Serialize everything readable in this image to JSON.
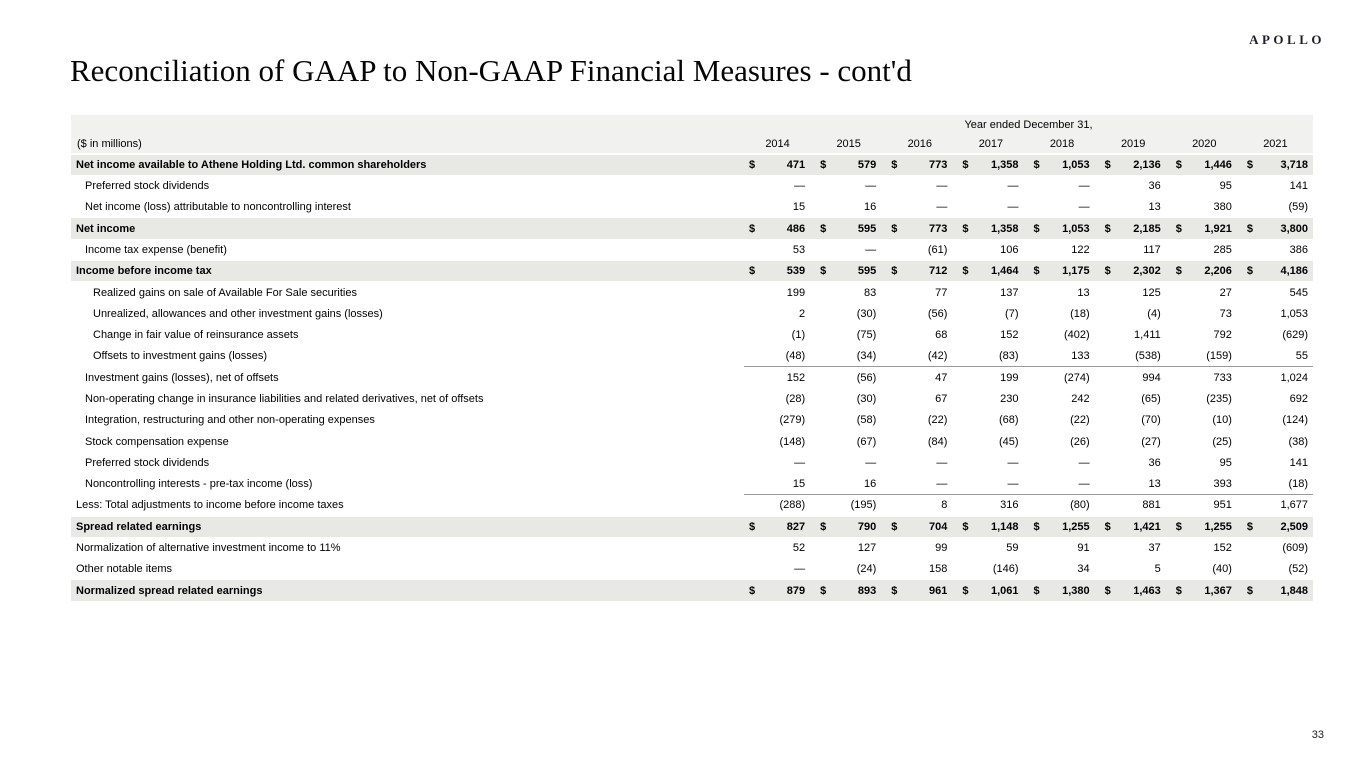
{
  "logo": "APOLLO",
  "page_title": "Reconciliation of GAAP to Non-GAAP Financial Measures - cont'd",
  "page_number": "33",
  "colors": {
    "header_band": "#f1f1ef",
    "total_row_shading": "#e8e8e4",
    "rule_line": "#9a9a9a"
  },
  "table": {
    "period_header": "Year ended December 31,",
    "units_label": "($ in millions)",
    "currency_symbol": "$",
    "years": [
      "2014",
      "2015",
      "2016",
      "2017",
      "2018",
      "2019",
      "2020",
      "2021"
    ],
    "rows": [
      {
        "label": "Net income available to Athene Holding Ltd. common shareholders",
        "style": "total",
        "indent": 0,
        "dollar": true,
        "rule_below": false,
        "values": [
          "471",
          "579",
          "773",
          "1,358",
          "1,053",
          "2,136",
          "1,446",
          "3,718"
        ]
      },
      {
        "label": "Preferred stock dividends",
        "style": "normal",
        "indent": 1,
        "dollar": false,
        "rule_below": false,
        "values": [
          "—",
          "—",
          "—",
          "—",
          "—",
          "36",
          "95",
          "141"
        ]
      },
      {
        "label": "Net income (loss) attributable to noncontrolling interest",
        "style": "normal",
        "indent": 1,
        "dollar": false,
        "rule_below": false,
        "values": [
          "15",
          "16",
          "—",
          "—",
          "—",
          "13",
          "380",
          "(59)"
        ]
      },
      {
        "label": "Net income",
        "style": "total",
        "indent": 0,
        "dollar": true,
        "rule_below": false,
        "values": [
          "486",
          "595",
          "773",
          "1,358",
          "1,053",
          "2,185",
          "1,921",
          "3,800"
        ]
      },
      {
        "label": "Income tax expense (benefit)",
        "style": "normal",
        "indent": 1,
        "dollar": false,
        "rule_below": false,
        "values": [
          "53",
          "—",
          "(61)",
          "106",
          "122",
          "117",
          "285",
          "386"
        ]
      },
      {
        "label": "Income before income tax",
        "style": "total",
        "indent": 0,
        "dollar": true,
        "rule_below": false,
        "values": [
          "539",
          "595",
          "712",
          "1,464",
          "1,175",
          "2,302",
          "2,206",
          "4,186"
        ]
      },
      {
        "label": "Realized gains on sale of Available For Sale securities",
        "style": "normal",
        "indent": 2,
        "dollar": false,
        "rule_below": false,
        "values": [
          "199",
          "83",
          "77",
          "137",
          "13",
          "125",
          "27",
          "545"
        ]
      },
      {
        "label": "Unrealized, allowances and other investment gains (losses)",
        "style": "normal",
        "indent": 2,
        "dollar": false,
        "rule_below": false,
        "values": [
          "2",
          "(30)",
          "(56)",
          "(7)",
          "(18)",
          "(4)",
          "73",
          "1,053"
        ]
      },
      {
        "label": "Change in fair value of reinsurance assets",
        "style": "normal",
        "indent": 2,
        "dollar": false,
        "rule_below": false,
        "values": [
          "(1)",
          "(75)",
          "68",
          "152",
          "(402)",
          "1,411",
          "792",
          "(629)"
        ]
      },
      {
        "label": "Offsets to investment gains (losses)",
        "style": "normal",
        "indent": 2,
        "dollar": false,
        "rule_below": true,
        "values": [
          "(48)",
          "(34)",
          "(42)",
          "(83)",
          "133",
          "(538)",
          "(159)",
          "55"
        ]
      },
      {
        "label": "Investment gains (losses), net of offsets",
        "style": "normal",
        "indent": 1,
        "dollar": false,
        "rule_below": false,
        "values": [
          "152",
          "(56)",
          "47",
          "199",
          "(274)",
          "994",
          "733",
          "1,024"
        ]
      },
      {
        "label": "Non-operating change in insurance liabilities and related derivatives, net of offsets",
        "style": "normal",
        "indent": 1,
        "dollar": false,
        "rule_below": false,
        "values": [
          "(28)",
          "(30)",
          "67",
          "230",
          "242",
          "(65)",
          "(235)",
          "692"
        ]
      },
      {
        "label": "Integration, restructuring and other non-operating expenses",
        "style": "normal",
        "indent": 1,
        "dollar": false,
        "rule_below": false,
        "values": [
          "(279)",
          "(58)",
          "(22)",
          "(68)",
          "(22)",
          "(70)",
          "(10)",
          "(124)"
        ]
      },
      {
        "label": "Stock compensation expense",
        "style": "normal",
        "indent": 1,
        "dollar": false,
        "rule_below": false,
        "values": [
          "(148)",
          "(67)",
          "(84)",
          "(45)",
          "(26)",
          "(27)",
          "(25)",
          "(38)"
        ]
      },
      {
        "label": "Preferred stock dividends",
        "style": "normal",
        "indent": 1,
        "dollar": false,
        "rule_below": false,
        "values": [
          "—",
          "—",
          "—",
          "—",
          "—",
          "36",
          "95",
          "141"
        ]
      },
      {
        "label": "Noncontrolling interests - pre-tax income (loss)",
        "style": "normal",
        "indent": 1,
        "dollar": false,
        "rule_below": true,
        "values": [
          "15",
          "16",
          "—",
          "—",
          "—",
          "13",
          "393",
          "(18)"
        ]
      },
      {
        "label": "Less: Total adjustments to income before income taxes",
        "style": "normal",
        "indent": 0,
        "dollar": false,
        "rule_below": false,
        "values": [
          "(288)",
          "(195)",
          "8",
          "316",
          "(80)",
          "881",
          "951",
          "1,677"
        ]
      },
      {
        "label": "Spread related earnings",
        "style": "total",
        "indent": 0,
        "dollar": true,
        "rule_below": false,
        "values": [
          "827",
          "790",
          "704",
          "1,148",
          "1,255",
          "1,421",
          "1,255",
          "2,509"
        ]
      },
      {
        "label": "Normalization of alternative investment income to 11%",
        "style": "normal",
        "indent": 0,
        "dollar": false,
        "rule_below": false,
        "values": [
          "52",
          "127",
          "99",
          "59",
          "91",
          "37",
          "152",
          "(609)"
        ]
      },
      {
        "label": "Other notable items",
        "style": "normal",
        "indent": 0,
        "dollar": false,
        "rule_below": false,
        "values": [
          "—",
          "(24)",
          "158",
          "(146)",
          "34",
          "5",
          "(40)",
          "(52)"
        ]
      },
      {
        "label": "Normalized spread related earnings",
        "style": "total",
        "indent": 0,
        "dollar": true,
        "rule_below": false,
        "values": [
          "879",
          "893",
          "961",
          "1,061",
          "1,380",
          "1,463",
          "1,367",
          "1,848"
        ]
      }
    ]
  }
}
